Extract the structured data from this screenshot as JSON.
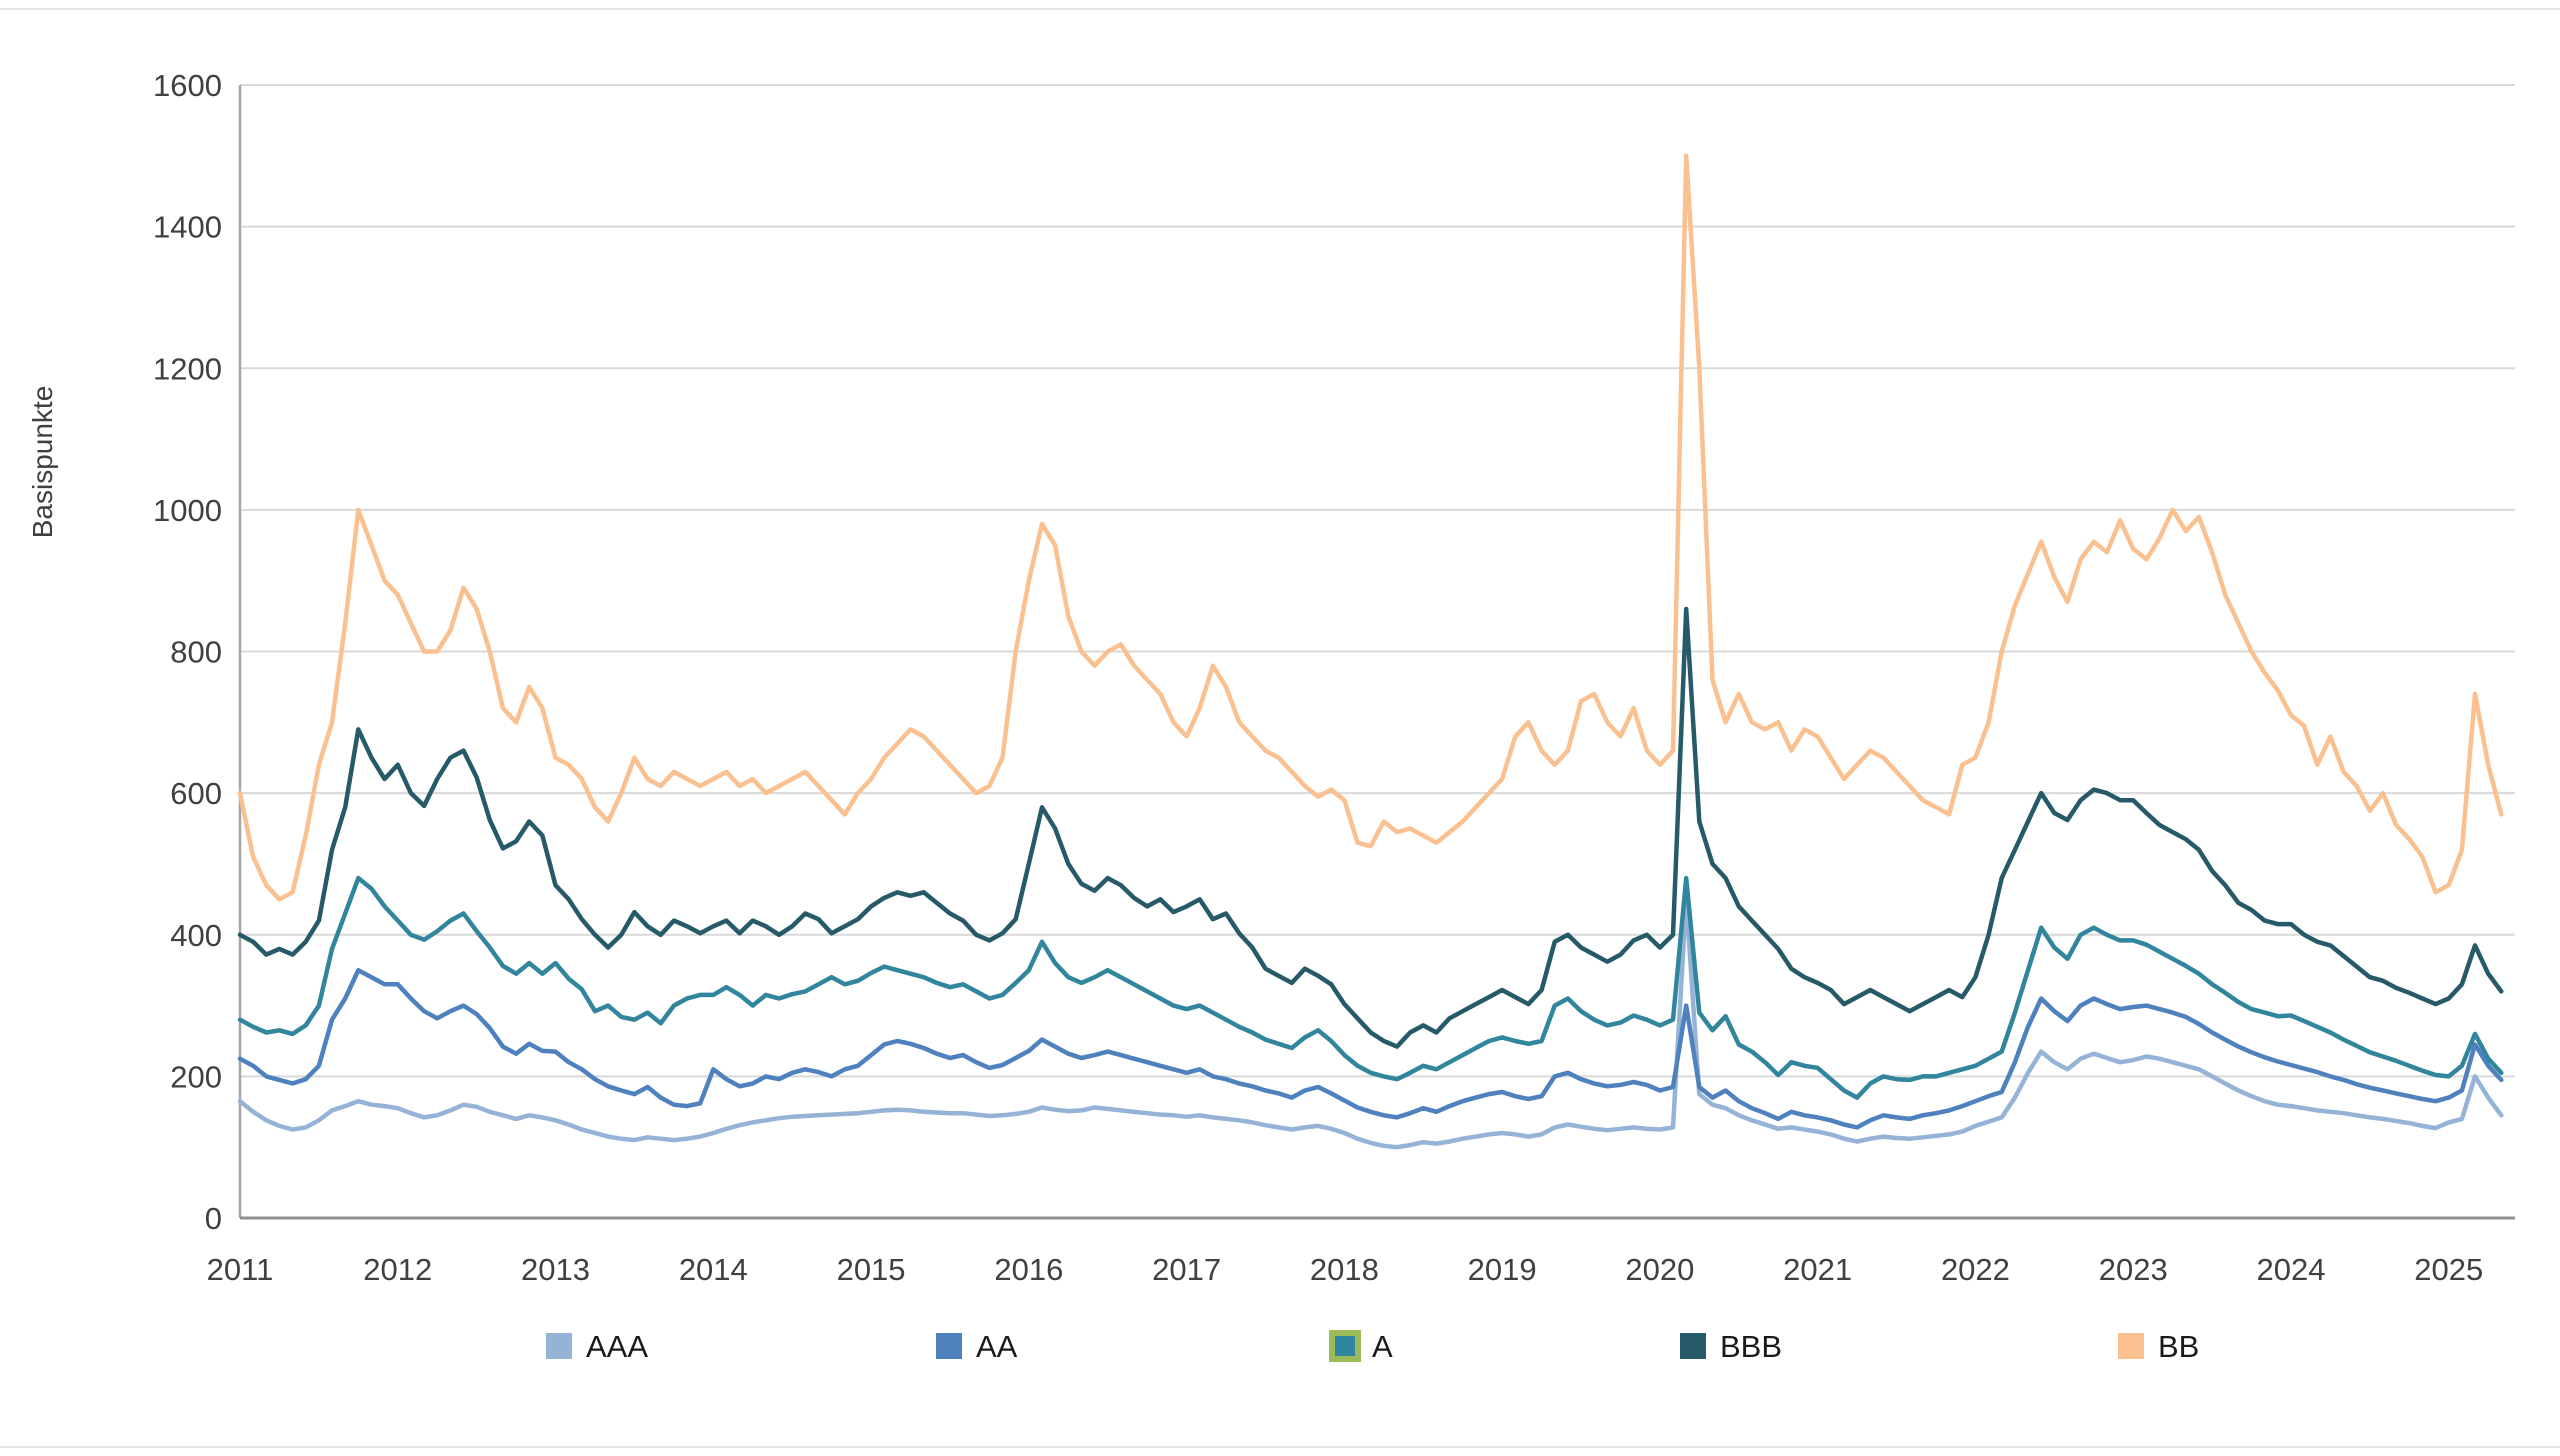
{
  "chart_data": {
    "type": "line",
    "title": "",
    "xlabel": "",
    "ylabel": "Basispunkte",
    "ylim": [
      0,
      1600
    ],
    "xlim": [
      2011.0,
      2025.42
    ],
    "grid": "horizontal-only",
    "legend_position": "bottom",
    "background": "#ffffff",
    "gridline_color": "#d9d9d9",
    "axis_line_color": "#a6a6a6",
    "tick_text_color": "#404040",
    "y_ticks": [
      0,
      200,
      400,
      600,
      800,
      1000,
      1200,
      1400,
      1600
    ],
    "y_tick_labels": [
      "0",
      "200",
      "400",
      "600",
      "800",
      "1000",
      "1200",
      "1400",
      "1600"
    ],
    "x_ticks": [
      2011,
      2012,
      2013,
      2014,
      2015,
      2016,
      2017,
      2018,
      2019,
      2020,
      2021,
      2022,
      2023,
      2024,
      2025
    ],
    "x_tick_labels": [
      "2011",
      "2012",
      "2013",
      "2014",
      "2015",
      "2016",
      "2017",
      "2018",
      "2019",
      "2020",
      "2021",
      "2022",
      "2023",
      "2024",
      "2025"
    ],
    "x_start": 2011.0,
    "x_step": 0.0833333,
    "series": [
      {
        "name": "AAA",
        "color": "#95B3D7",
        "values": [
          165,
          150,
          138,
          130,
          125,
          128,
          138,
          152,
          158,
          165,
          160,
          158,
          155,
          148,
          142,
          145,
          152,
          160,
          157,
          150,
          145,
          140,
          145,
          142,
          138,
          132,
          125,
          120,
          115,
          112,
          110,
          114,
          112,
          110,
          112,
          115,
          120,
          126,
          131,
          135,
          138,
          141,
          143,
          144,
          145,
          146,
          147,
          148,
          150,
          152,
          153,
          152,
          150,
          149,
          148,
          148,
          146,
          144,
          145,
          147,
          150,
          156,
          153,
          151,
          152,
          156,
          154,
          152,
          150,
          148,
          146,
          145,
          143,
          145,
          142,
          140,
          138,
          135,
          131,
          128,
          125,
          128,
          130,
          126,
          120,
          112,
          106,
          102,
          100,
          103,
          107,
          105,
          108,
          112,
          115,
          118,
          120,
          118,
          115,
          118,
          128,
          132,
          129,
          126,
          124,
          126,
          128,
          126,
          125,
          128,
          450,
          175,
          160,
          155,
          145,
          138,
          132,
          126,
          128,
          125,
          122,
          118,
          112,
          108,
          112,
          115,
          113,
          112,
          114,
          116,
          118,
          122,
          130,
          136,
          142,
          170,
          205,
          235,
          220,
          210,
          225,
          232,
          226,
          220,
          223,
          228,
          225,
          220,
          215,
          210,
          200,
          190,
          180,
          172,
          165,
          160,
          158,
          155,
          152,
          150,
          148,
          145,
          142,
          140,
          137,
          134,
          130,
          127,
          135,
          140,
          200,
          170,
          145
        ]
      },
      {
        "name": "AA",
        "color": "#4E81BD",
        "values": [
          225,
          215,
          200,
          195,
          190,
          196,
          215,
          280,
          310,
          350,
          340,
          330,
          330,
          310,
          292,
          282,
          292,
          300,
          288,
          268,
          242,
          232,
          246,
          236,
          235,
          220,
          210,
          196,
          186,
          180,
          175,
          185,
          170,
          160,
          158,
          162,
          210,
          196,
          186,
          190,
          200,
          196,
          205,
          210,
          206,
          200,
          210,
          215,
          230,
          245,
          250,
          246,
          240,
          232,
          226,
          230,
          220,
          212,
          216,
          226,
          236,
          252,
          242,
          232,
          226,
          230,
          235,
          230,
          225,
          220,
          215,
          210,
          205,
          210,
          200,
          196,
          190,
          186,
          180,
          176,
          170,
          180,
          185,
          176,
          166,
          156,
          150,
          145,
          142,
          148,
          155,
          150,
          158,
          165,
          170,
          175,
          178,
          172,
          168,
          172,
          200,
          205,
          196,
          190,
          186,
          188,
          192,
          188,
          180,
          185,
          300,
          185,
          170,
          180,
          165,
          155,
          148,
          140,
          150,
          145,
          142,
          138,
          132,
          128,
          138,
          145,
          142,
          140,
          145,
          148,
          152,
          158,
          165,
          172,
          178,
          220,
          270,
          310,
          292,
          278,
          300,
          310,
          302,
          295,
          298,
          300,
          295,
          290,
          284,
          274,
          262,
          252,
          242,
          234,
          227,
          221,
          216,
          211,
          206,
          200,
          195,
          189,
          184,
          180,
          176,
          172,
          168,
          165,
          170,
          180,
          245,
          215,
          195
        ]
      },
      {
        "name": "A",
        "color": "#31859C",
        "values": [
          280,
          270,
          262,
          265,
          260,
          272,
          300,
          380,
          430,
          480,
          465,
          440,
          420,
          400,
          393,
          405,
          420,
          430,
          405,
          382,
          356,
          345,
          360,
          345,
          360,
          338,
          323,
          292,
          300,
          284,
          280,
          290,
          275,
          300,
          310,
          315,
          315,
          326,
          315,
          300,
          315,
          310,
          316,
          320,
          330,
          340,
          330,
          335,
          346,
          355,
          350,
          345,
          340,
          332,
          326,
          330,
          320,
          310,
          315,
          332,
          350,
          390,
          360,
          340,
          332,
          340,
          350,
          340,
          330,
          320,
          310,
          300,
          295,
          300,
          290,
          280,
          270,
          262,
          252,
          246,
          240,
          255,
          265,
          250,
          230,
          215,
          205,
          200,
          196,
          205,
          215,
          210,
          220,
          230,
          240,
          250,
          255,
          250,
          246,
          250,
          300,
          310,
          292,
          280,
          272,
          276,
          286,
          280,
          272,
          280,
          480,
          290,
          265,
          285,
          245,
          235,
          220,
          202,
          220,
          215,
          212,
          196,
          180,
          170,
          190,
          200,
          196,
          195,
          200,
          200,
          205,
          210,
          215,
          225,
          235,
          290,
          350,
          410,
          382,
          366,
          400,
          410,
          400,
          392,
          392,
          386,
          376,
          366,
          356,
          345,
          330,
          318,
          305,
          295,
          290,
          285,
          286,
          278,
          270,
          262,
          252,
          243,
          234,
          228,
          222,
          215,
          208,
          202,
          200,
          215,
          260,
          225,
          205
        ]
      },
      {
        "name": "BBB",
        "color": "#265A68",
        "values": [
          400,
          390,
          372,
          380,
          372,
          390,
          420,
          520,
          580,
          690,
          650,
          620,
          640,
          600,
          582,
          620,
          650,
          660,
          622,
          562,
          522,
          532,
          560,
          540,
          470,
          450,
          422,
          400,
          382,
          400,
          432,
          412,
          400,
          420,
          412,
          402,
          412,
          420,
          402,
          420,
          412,
          400,
          412,
          430,
          422,
          402,
          412,
          422,
          440,
          452,
          460,
          455,
          460,
          445,
          430,
          420,
          400,
          392,
          402,
          422,
          500,
          580,
          550,
          500,
          472,
          462,
          480,
          470,
          452,
          440,
          450,
          432,
          440,
          450,
          422,
          430,
          402,
          382,
          352,
          342,
          332,
          352,
          342,
          330,
          302,
          282,
          262,
          250,
          242,
          262,
          272,
          262,
          282,
          292,
          302,
          312,
          322,
          312,
          302,
          322,
          390,
          400,
          382,
          372,
          362,
          372,
          392,
          400,
          382,
          400,
          860,
          560,
          500,
          480,
          440,
          420,
          400,
          380,
          352,
          340,
          332,
          322,
          302,
          312,
          322,
          312,
          302,
          292,
          302,
          312,
          322,
          312,
          340,
          400,
          480,
          520,
          560,
          600,
          572,
          562,
          590,
          605,
          600,
          590,
          590,
          572,
          555,
          545,
          535,
          520,
          490,
          470,
          445,
          435,
          420,
          415,
          415,
          400,
          390,
          385,
          370,
          355,
          340,
          335,
          325,
          318,
          310,
          302,
          310,
          330,
          385,
          345,
          320
        ]
      },
      {
        "name": "BB",
        "color": "#FAC090",
        "values": [
          600,
          510,
          470,
          450,
          460,
          540,
          640,
          700,
          840,
          1000,
          950,
          900,
          880,
          840,
          800,
          800,
          830,
          890,
          860,
          800,
          720,
          700,
          750,
          720,
          650,
          640,
          620,
          580,
          560,
          600,
          650,
          620,
          610,
          630,
          620,
          610,
          620,
          630,
          610,
          620,
          600,
          610,
          620,
          630,
          610,
          590,
          570,
          600,
          620,
          650,
          670,
          690,
          680,
          660,
          640,
          620,
          600,
          610,
          650,
          800,
          900,
          980,
          950,
          850,
          800,
          780,
          800,
          810,
          780,
          760,
          740,
          700,
          680,
          720,
          780,
          750,
          700,
          680,
          660,
          650,
          630,
          610,
          595,
          605,
          590,
          530,
          525,
          560,
          545,
          550,
          540,
          530,
          545,
          560,
          580,
          600,
          620,
          680,
          700,
          660,
          640,
          660,
          730,
          740,
          700,
          680,
          720,
          660,
          640,
          660,
          1500,
          1200,
          760,
          700,
          740,
          700,
          690,
          700,
          660,
          690,
          680,
          650,
          620,
          640,
          660,
          650,
          630,
          610,
          590,
          580,
          570,
          640,
          650,
          700,
          800,
          865,
          910,
          955,
          905,
          870,
          930,
          955,
          940,
          985,
          945,
          930,
          960,
          1000,
          970,
          990,
          940,
          880,
          840,
          800,
          770,
          745,
          710,
          695,
          640,
          680,
          630,
          610,
          575,
          600,
          555,
          535,
          510,
          460,
          470,
          520,
          740,
          640,
          570
        ]
      }
    ],
    "legend": [
      {
        "label": "AAA",
        "color": "#95B3D7",
        "border": ""
      },
      {
        "label": "AA",
        "color": "#4E81BD",
        "border": ""
      },
      {
        "label": "A",
        "color": "#31859C",
        "border": "#9BBB59"
      },
      {
        "label": "BBB",
        "color": "#265A68",
        "border": ""
      },
      {
        "label": "BB",
        "color": "#FAC090",
        "border": ""
      }
    ]
  }
}
